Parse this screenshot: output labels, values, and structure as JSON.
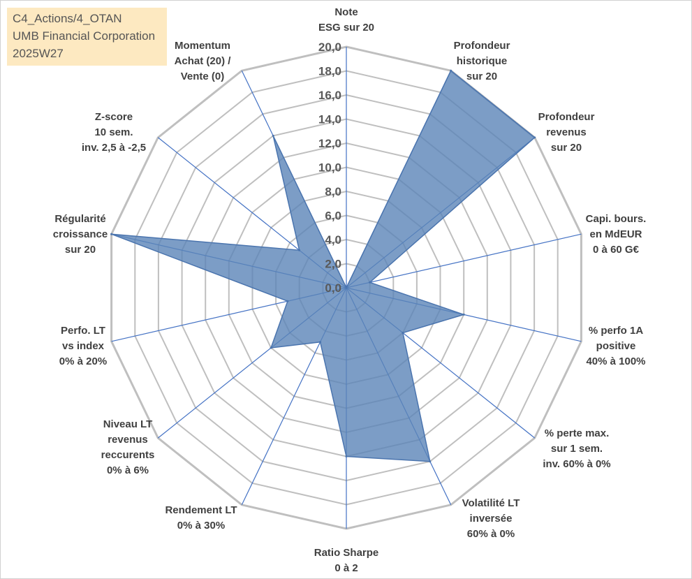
{
  "info_box": {
    "line1": "C4_Actions/4_OTAN",
    "line2": "UMB Financial Corporation",
    "line3": "2025W27"
  },
  "chart_data": {
    "type": "radar",
    "title": "",
    "r_range": [
      0,
      20
    ],
    "r_ticks": [
      "0,0",
      "2,0",
      "4,0",
      "6,0",
      "8,0",
      "10,0",
      "12,0",
      "14,0",
      "16,0",
      "18,0",
      "20,0"
    ],
    "grid": true,
    "colors": {
      "fill": "#5b85b8",
      "stroke": "#4a74ae",
      "spoke": "#4472c4",
      "grid": "#bfbfbf"
    },
    "axes": [
      {
        "label": [
          "Note",
          "ESG sur 20"
        ],
        "value": 0
      },
      {
        "label": [
          "Profondeur",
          "historique",
          "sur 20"
        ],
        "value": 20
      },
      {
        "label": [
          "Profondeur",
          "revenus",
          "sur 20"
        ],
        "value": 20
      },
      {
        "label": [
          "Capi. bours.",
          "en MdEUR",
          "0 à 60 G€"
        ],
        "value": 2
      },
      {
        "label": [
          "% perfo 1A",
          "positive",
          "40% à 100%"
        ],
        "value": 10
      },
      {
        "label": [
          "% perte max.",
          "sur 1 sem.",
          "inv. 60% à 0%"
        ],
        "value": 6
      },
      {
        "label": [
          "Volatilité LT",
          "inversée",
          "60% à 0%"
        ],
        "value": 16
      },
      {
        "label": [
          "Ratio Sharpe",
          "0 à 2"
        ],
        "value": 14
      },
      {
        "label": [
          "Rendement LT",
          "0% à 30%"
        ],
        "value": 5
      },
      {
        "label": [
          "Niveau LT",
          "revenus",
          "reccurents",
          "0% à 6%"
        ],
        "value": 8
      },
      {
        "label": [
          "Perfo. LT",
          "vs index",
          "0% à 20%"
        ],
        "value": 5
      },
      {
        "label": [
          "Régularité",
          "croissance",
          "sur 20"
        ],
        "value": 20
      },
      {
        "label": [
          "Z-score",
          "10 sem.",
          "inv. 2,5 à -2,5"
        ],
        "value": 5
      },
      {
        "label": [
          "Momentum",
          "Achat (20) /",
          "Vente (0)"
        ],
        "value": 14
      }
    ]
  }
}
